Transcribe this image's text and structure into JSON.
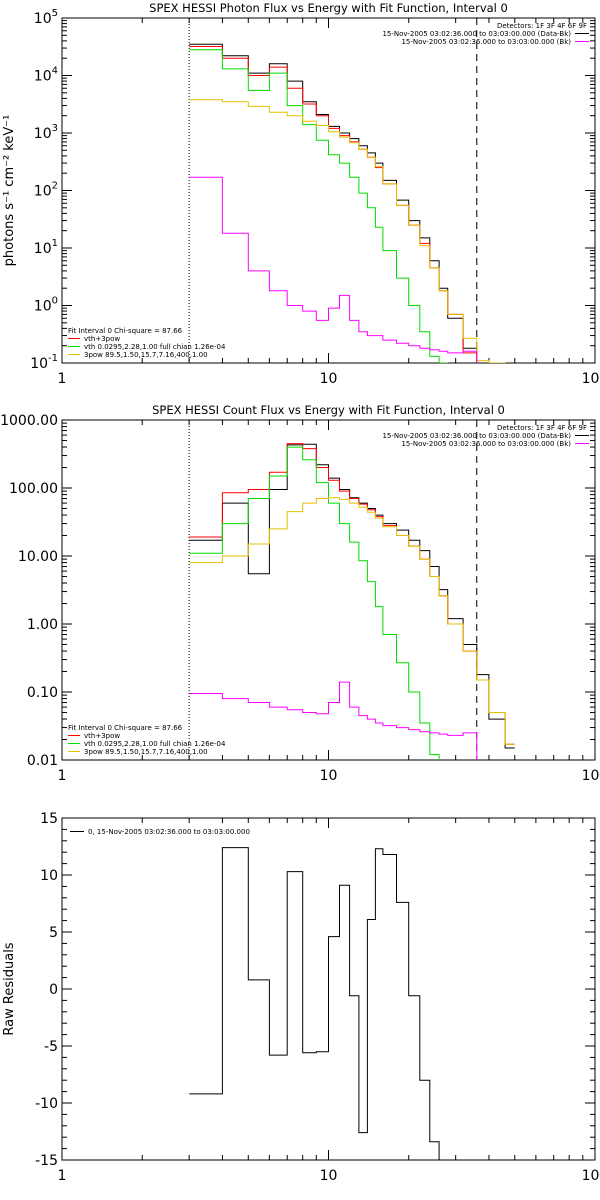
{
  "chart_data": [
    {
      "type": "line",
      "step": true,
      "title": "SPEX HESSI Photon Flux vs Energy with Fit Function, Interval 0",
      "ylabel": "photons s⁻¹ cm⁻² keV⁻¹",
      "xlabel": "",
      "xscale": "log",
      "yscale": "log",
      "xlim": [
        1,
        100
      ],
      "ylim": [
        0.1,
        100000
      ],
      "xticks": [
        1,
        10,
        100
      ],
      "xtick_labels": [
        "1",
        "10",
        "100"
      ],
      "yticks": [
        0.1,
        1,
        10,
        100,
        1000,
        10000,
        100000
      ],
      "ytick_labels": [
        {
          "base": "10",
          "exp": "-1"
        },
        {
          "base": "10",
          "exp": "0"
        },
        {
          "base": "10",
          "exp": "1"
        },
        {
          "base": "10",
          "exp": "2"
        },
        {
          "base": "10",
          "exp": "3"
        },
        {
          "base": "10",
          "exp": "4"
        },
        {
          "base": "10",
          "exp": "5"
        }
      ],
      "vlines": [
        {
          "x": 3,
          "style": "dotted",
          "color": "#000000"
        },
        {
          "x": 36,
          "style": "dashed",
          "color": "#000000"
        }
      ],
      "legend_top": {
        "placement": "top-right",
        "header": "Detectors: 1F 3F 4F 6F 9F",
        "entries": [
          {
            "text": "15-Nov-2005 03:02:36.000 to 03:03:00.000 (Data-Bk)",
            "color": "#000000"
          },
          {
            "text": "15-Nov-2005 03:02:36.000 to 03:03:00.000 (Bk)",
            "color": "#ff00ff"
          }
        ]
      },
      "legend_bottom": {
        "placement": "bottom-left",
        "header": "Fit Interval 0   Chi-square = 87.66",
        "entries": [
          {
            "text": "vth+3pow",
            "color": "#ff0000"
          },
          {
            "text": "vth 0.0295,2.28,1.00  full chian 1.26e-04",
            "color": "#00dd00"
          },
          {
            "text": "3pow 89.5,1.50,15.7,7.16,400,1.00",
            "color": "#e6c000"
          }
        ]
      },
      "edges": [
        3,
        3.5,
        4,
        4.5,
        5,
        5.5,
        6,
        6.5,
        7,
        7.5,
        8,
        8.5,
        9,
        9.5,
        10,
        10.5,
        11,
        11.5,
        12,
        12.5,
        13,
        13.5,
        14,
        14.5,
        15,
        15.5,
        16,
        17,
        18,
        19,
        20,
        21,
        22,
        23,
        24,
        25,
        26,
        27,
        28,
        30,
        32,
        34,
        36,
        38,
        40,
        43,
        46,
        50
      ],
      "series": [
        {
          "name": "data",
          "color": "#000000",
          "values": [
            35000,
            35000,
            22000,
            22000,
            11000,
            11000,
            16000,
            16000,
            8000,
            8000,
            3500,
            3500,
            2100,
            2100,
            1300,
            1300,
            1000,
            1000,
            800,
            800,
            600,
            600,
            450,
            450,
            300,
            300,
            150,
            150,
            68,
            68,
            30,
            30,
            15,
            15,
            6,
            6,
            2,
            2,
            0.6,
            0.6,
            0.18,
            0.18
          ]
        },
        {
          "name": "",
          "color": "#ff0000",
          "values": [
            32000,
            32000,
            20000,
            20000,
            10000,
            10000,
            14000,
            14000,
            6000,
            6000,
            3200,
            3200,
            2000,
            2000,
            1200,
            1200,
            900,
            900,
            700,
            700,
            520,
            520,
            380,
            380,
            250,
            250,
            130,
            130,
            55,
            55,
            25,
            25,
            12,
            12,
            4.5,
            4.5,
            1.8,
            1.8,
            0.7,
            0.7,
            0.15,
            0.15
          ]
        },
        {
          "name": "",
          "color": "#00dd00",
          "values": [
            28000,
            28000,
            13000,
            13000,
            5500,
            5500,
            11000,
            11000,
            3000,
            3000,
            1400,
            1400,
            750,
            750,
            420,
            420,
            300,
            300,
            170,
            170,
            90,
            90,
            50,
            50,
            23,
            23,
            9,
            9,
            3,
            3,
            1,
            1,
            0.35,
            0.35,
            0.13,
            0.13,
            0.1,
            0.1
          ]
        },
        {
          "name": "",
          "color": "#e6c000",
          "values": [
            3800,
            3800,
            3500,
            3500,
            2900,
            2900,
            2300,
            2300,
            2000,
            2000,
            1600,
            1600,
            1350,
            1350,
            1050,
            1050,
            850,
            850,
            680,
            680,
            520,
            520,
            380,
            380,
            260,
            260,
            130,
            130,
            55,
            55,
            25,
            25,
            11,
            11,
            4.5,
            4.5,
            1.8,
            1.8,
            0.7,
            0.7,
            0.27,
            0.27,
            0.11,
            0.11,
            0.1,
            0.1
          ]
        },
        {
          "name": "",
          "color": "#ff00ff",
          "values": [
            170,
            170,
            18,
            18,
            4,
            4,
            1.8,
            1.8,
            1,
            1,
            0.8,
            0.8,
            0.55,
            0.55,
            0.9,
            0.9,
            1.5,
            1.5,
            0.55,
            0.55,
            0.35,
            0.35,
            0.3,
            0.3,
            0.3,
            0.3,
            0.25,
            0.25,
            0.22,
            0.22,
            0.2,
            0.2,
            0.18,
            0.18,
            0.17,
            0.17,
            0.16,
            0.16,
            0.15,
            0.15,
            0.16,
            0.16
          ]
        }
      ]
    },
    {
      "type": "line",
      "step": true,
      "title": "SPEX HESSI Count Flux vs Energy with Fit Function, Interval 0",
      "ylabel": "",
      "xlabel": "",
      "xscale": "log",
      "yscale": "log",
      "xlim": [
        1,
        100
      ],
      "ylim": [
        0.01,
        1000
      ],
      "xticks": [
        1,
        10,
        100
      ],
      "xtick_labels": [
        "1",
        "10",
        "100"
      ],
      "yticks": [
        0.01,
        0.1,
        1,
        10,
        100,
        1000
      ],
      "ytick_labels": [
        "0.01",
        "0.10",
        "1.00",
        "10.00",
        "100.00",
        "1000.00"
      ],
      "vlines": [
        {
          "x": 3,
          "style": "dotted",
          "color": "#000000"
        },
        {
          "x": 36,
          "style": "dashed",
          "color": "#000000"
        }
      ],
      "legend_top": {
        "placement": "top-right",
        "header": "Detectors: 1F 3F 4F 6F 9F",
        "entries": [
          {
            "text": "15-Nov-2005 03:02:36.000 to 03:03:00.000 (Data-Bk)",
            "color": "#000000"
          },
          {
            "text": "15-Nov-2005 03:02:36.000 to 03:03:00.000 (Bk)",
            "color": "#ff00ff"
          }
        ]
      },
      "legend_bottom": {
        "placement": "bottom-left",
        "header": "Fit Interval 0   Chi-square = 87.66",
        "entries": [
          {
            "text": "vth+3pow",
            "color": "#ff0000"
          },
          {
            "text": "vth 0.0295,2.28,1.00  full chian 1.26e-04",
            "color": "#00dd00"
          },
          {
            "text": "3pow 89.5,1.50,15.7,7.16,400,1.00",
            "color": "#e6c000"
          }
        ]
      },
      "edges": [
        3,
        3.5,
        4,
        4.5,
        5,
        5.5,
        6,
        6.5,
        7,
        7.5,
        8,
        8.5,
        9,
        9.5,
        10,
        10.5,
        11,
        11.5,
        12,
        12.5,
        13,
        13.5,
        14,
        14.5,
        15,
        15.5,
        16,
        17,
        18,
        19,
        20,
        21,
        22,
        23,
        24,
        25,
        26,
        27,
        28,
        30,
        32,
        34,
        36,
        38,
        40,
        43,
        46,
        50
      ],
      "series": [
        {
          "name": "data",
          "color": "#000000",
          "values": [
            17,
            17,
            60,
            60,
            5.5,
            5.5,
            95,
            95,
            430,
            430,
            440,
            440,
            220,
            220,
            140,
            140,
            95,
            95,
            72,
            72,
            60,
            60,
            50,
            50,
            40,
            40,
            30,
            30,
            24,
            24,
            17,
            17,
            12,
            12,
            7,
            7,
            3.2,
            3.2,
            1.2,
            1.2,
            0.5,
            0.5,
            0.18,
            0.18,
            0.04,
            0.04,
            0.015,
            0.015
          ]
        },
        {
          "name": "",
          "color": "#ff0000",
          "values": [
            19,
            19,
            85,
            85,
            95,
            95,
            170,
            170,
            450,
            450,
            380,
            380,
            200,
            200,
            130,
            130,
            90,
            90,
            70,
            70,
            58,
            58,
            48,
            48,
            38,
            38,
            28,
            28,
            20,
            20,
            14,
            14,
            9,
            9,
            5,
            5,
            2.6,
            2.6,
            1.0,
            1.0,
            0.4,
            0.4,
            0.15,
            0.15,
            0.05,
            0.05,
            0.017,
            0.017
          ]
        },
        {
          "name": "",
          "color": "#00dd00",
          "values": [
            11,
            11,
            30,
            30,
            70,
            70,
            150,
            150,
            400,
            400,
            260,
            260,
            120,
            120,
            60,
            60,
            30,
            30,
            16,
            16,
            8.5,
            8.5,
            4.2,
            4.2,
            1.8,
            1.8,
            0.7,
            0.7,
            0.27,
            0.27,
            0.1,
            0.1,
            0.035,
            0.035,
            0.012,
            0.012
          ]
        },
        {
          "name": "",
          "color": "#e6c000",
          "values": [
            8,
            8,
            10,
            10,
            15,
            15,
            25,
            25,
            45,
            45,
            60,
            60,
            70,
            70,
            72,
            72,
            68,
            68,
            60,
            60,
            52,
            52,
            44,
            44,
            36,
            36,
            27,
            27,
            20,
            20,
            14,
            14,
            9,
            9,
            5,
            5,
            2.6,
            2.6,
            1.0,
            1.0,
            0.4,
            0.4,
            0.15,
            0.15,
            0.05,
            0.05,
            0.017,
            0.017
          ]
        },
        {
          "name": "",
          "color": "#ff00ff",
          "values": [
            0.095,
            0.095,
            0.08,
            0.08,
            0.07,
            0.07,
            0.06,
            0.06,
            0.055,
            0.055,
            0.05,
            0.05,
            0.048,
            0.048,
            0.07,
            0.07,
            0.14,
            0.14,
            0.06,
            0.06,
            0.045,
            0.045,
            0.04,
            0.04,
            0.035,
            0.035,
            0.032,
            0.032,
            0.03,
            0.03,
            0.028,
            0.028,
            0.026,
            0.026,
            0.025,
            0.025,
            0.024,
            0.024,
            0.023,
            0.023,
            0.025,
            0.025
          ]
        }
      ]
    },
    {
      "type": "line",
      "step": true,
      "title": "",
      "ylabel": "Raw Residuals",
      "xlabel": "",
      "xscale": "log",
      "yscale": "linear",
      "xlim": [
        1,
        100
      ],
      "ylim": [
        -15,
        15
      ],
      "xticks": [
        1,
        10,
        100
      ],
      "xtick_labels": [
        "1",
        "10",
        "100"
      ],
      "yticks": [
        -15,
        -10,
        -5,
        0,
        5,
        10,
        15
      ],
      "ytick_labels": [
        "-15",
        "-10",
        "-5",
        "0",
        "5",
        "10",
        "15"
      ],
      "vlines": [],
      "legend_top": {
        "placement": "top-left",
        "header": "",
        "entries": [
          {
            "text": "0, 15-Nov-2005 03:02:36.000 to 03:03:00.000",
            "color": "#000000"
          }
        ]
      },
      "legend_bottom": null,
      "edges": [
        3,
        3.5,
        4,
        4.5,
        5,
        5.5,
        6,
        6.5,
        7,
        7.5,
        8,
        8.5,
        9,
        9.5,
        10,
        10.5,
        11,
        11.5,
        12,
        12.5,
        13,
        13.5,
        14,
        14.5,
        15,
        15.5,
        16,
        17,
        18,
        19,
        20,
        21,
        22,
        23,
        24,
        25,
        26,
        27,
        28,
        30,
        32,
        34,
        36,
        38,
        40
      ],
      "series": [
        {
          "name": "",
          "color": "#000000",
          "values": [
            -9.2,
            -9.2,
            12.4,
            12.4,
            0.8,
            0.8,
            -5.8,
            -5.8,
            10.3,
            10.3,
            -5.6,
            -5.6,
            -5.5,
            -5.5,
            4.6,
            4.6,
            9.1,
            9.1,
            -0.6,
            -0.6,
            -12.6,
            -12.6,
            6.1,
            6.1,
            12.3,
            12.3,
            11.8,
            11.8,
            7.6,
            7.6,
            -0.6,
            -0.6,
            -8.0,
            -8.0,
            -13.4,
            -13.4,
            -15.5,
            -15.5
          ]
        }
      ]
    }
  ]
}
